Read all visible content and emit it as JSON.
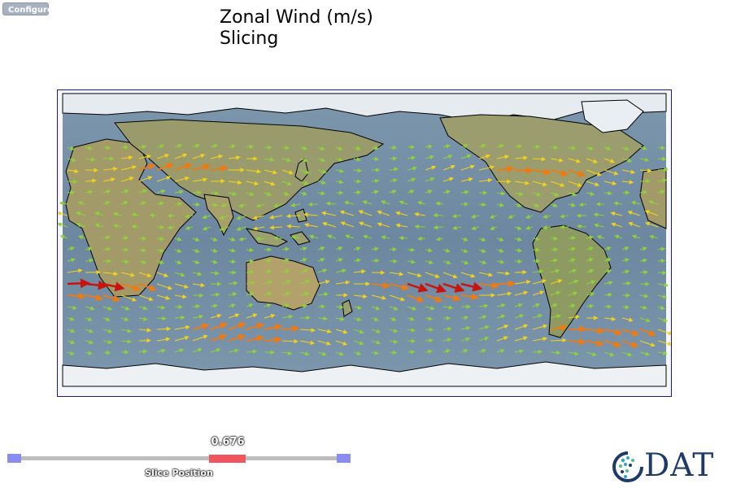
{
  "toolbar": {
    "configure_label": "Configure"
  },
  "plot": {
    "title": "Zonal Wind (m/s)\nSlicing"
  },
  "slider": {
    "value": "0.676",
    "label": "Slice Position",
    "position": 0.676
  },
  "logo": {
    "text": "DAT",
    "emblem_letter": "C"
  },
  "colors": {
    "frame": "#1a1a8c",
    "ocean": "#6f8aa2",
    "land": "#9c9a6e",
    "ice": "#e9eef2",
    "coast": "#000000",
    "wind_low": "#8fd13a",
    "wind_mid": "#f0d21a",
    "wind_high": "#f07a12",
    "wind_max": "#c8140c",
    "slider_track": "#bdbdbd",
    "slider_cap": "#8a8cf2",
    "slider_handle": "#f0545c",
    "logo_text": "#1d3a6b"
  }
}
